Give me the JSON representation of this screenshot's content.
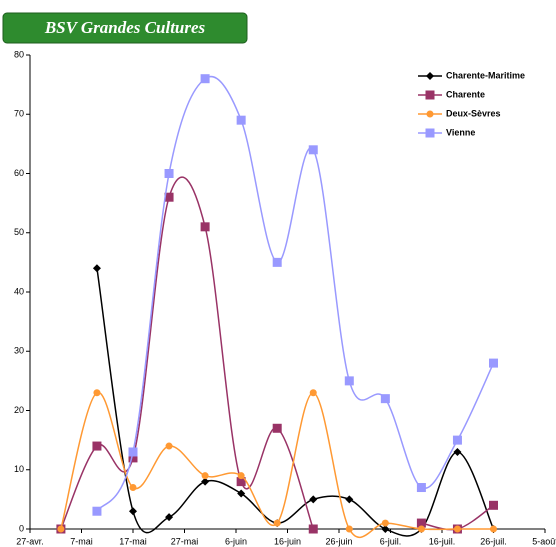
{
  "chart_data": {
    "type": "line",
    "banner": "BSV Grandes Cultures",
    "x": [
      123,
      130,
      137,
      144,
      151,
      158,
      165,
      172,
      179,
      186,
      193,
      200,
      207
    ],
    "xlim": [
      117,
      217
    ],
    "xticks": [
      {
        "value": 117,
        "label": "27-avr."
      },
      {
        "value": 127,
        "label": "7-mai"
      },
      {
        "value": 137,
        "label": "17-mai"
      },
      {
        "value": 147,
        "label": "27-mai"
      },
      {
        "value": 157,
        "label": "6-juin"
      },
      {
        "value": 167,
        "label": "16-juin"
      },
      {
        "value": 177,
        "label": "26-juin"
      },
      {
        "value": 187,
        "label": "6-juil."
      },
      {
        "value": 197,
        "label": "16-juil."
      },
      {
        "value": 207,
        "label": "26-juil."
      },
      {
        "value": 217,
        "label": "5-août"
      }
    ],
    "ylim": [
      0,
      80
    ],
    "yticks": [
      0,
      10,
      20,
      30,
      40,
      50,
      60,
      70,
      80
    ],
    "legend": "top-right",
    "series": [
      {
        "name": "Charente-Maritime",
        "color": "#000000",
        "marker": "diamond",
        "values": [
          null,
          44,
          3,
          2,
          8,
          6,
          1,
          5,
          5,
          0,
          0,
          13,
          0
        ]
      },
      {
        "name": "Charente",
        "color": "#993366",
        "marker": "square",
        "values": [
          0,
          14,
          12,
          56,
          51,
          8,
          17,
          0,
          null,
          null,
          1,
          0,
          4
        ]
      },
      {
        "name": "Deux-Sèvres",
        "color": "#ff9933",
        "marker": "circle",
        "values": [
          0,
          23,
          7,
          14,
          9,
          9,
          1,
          23,
          0,
          1,
          0,
          0,
          0
        ]
      },
      {
        "name": "Vienne",
        "color": "#9999ff",
        "marker": "square",
        "values": [
          null,
          3,
          13,
          60,
          76,
          69,
          45,
          64,
          25,
          22,
          7,
          15,
          28
        ]
      }
    ]
  }
}
